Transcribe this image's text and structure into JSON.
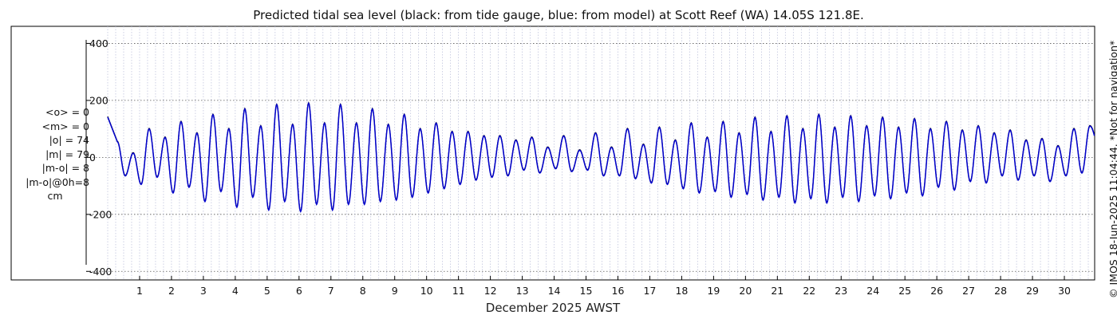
{
  "chart_data": {
    "type": "line",
    "title": "Predicted tidal sea level (black: from tide gauge, blue: from model) at Scott Reef (WA) 14.05S 121.8E.",
    "xlabel": "December 2025 AWST",
    "ylabel": "",
    "x_day_range": [
      0.0,
      30.95
    ],
    "ylim": [
      -430,
      460
    ],
    "yticks": [
      -400,
      -200,
      0,
      200,
      400
    ],
    "ytick_labels": [
      "-400",
      "-200",
      "0",
      "200",
      "400"
    ],
    "xticks": [
      1,
      2,
      3,
      4,
      5,
      6,
      7,
      8,
      9,
      10,
      11,
      12,
      13,
      14,
      15,
      16,
      17,
      18,
      19,
      20,
      21,
      22,
      23,
      24,
      25,
      26,
      27,
      28,
      29,
      30
    ],
    "xtick_labels": [
      "1",
      "2",
      "3",
      "4",
      "5",
      "6",
      "7",
      "8",
      "9",
      "10",
      "11",
      "12",
      "13",
      "14",
      "15",
      "16",
      "17",
      "18",
      "19",
      "20",
      "21",
      "22",
      "23",
      "24",
      "25",
      "26",
      "27",
      "28",
      "29",
      "30"
    ],
    "grid": true,
    "series_meta": [
      {
        "name": "tide gauge",
        "color": "#000000"
      },
      {
        "name": "model",
        "color": "#0000cc"
      }
    ],
    "high_tide_peaks_cm": {
      "day": [
        0.3,
        0.8,
        1.3,
        1.8,
        2.3,
        2.8,
        3.3,
        3.8,
        4.3,
        4.8,
        5.3,
        5.8,
        6.3,
        6.8,
        7.3,
        7.8,
        8.3,
        8.8,
        9.3,
        9.8,
        10.3,
        10.8,
        11.3,
        11.8,
        12.3,
        12.8,
        13.3,
        13.8,
        14.3,
        14.8,
        15.3,
        15.8,
        16.3,
        16.8,
        17.3,
        17.8,
        18.3,
        18.8,
        19.3,
        19.8,
        20.3,
        20.8,
        21.3,
        21.8,
        22.3,
        22.8,
        23.3,
        23.8,
        24.3,
        24.8,
        25.3,
        25.8,
        26.3,
        26.8,
        27.3,
        27.8,
        28.3,
        28.8,
        29.3,
        29.8,
        30.3,
        30.8
      ],
      "level": [
        55,
        15,
        100,
        70,
        125,
        85,
        150,
        100,
        170,
        110,
        185,
        115,
        190,
        120,
        185,
        120,
        170,
        115,
        150,
        100,
        120,
        90,
        90,
        75,
        75,
        60,
        70,
        35,
        75,
        25,
        85,
        35,
        100,
        45,
        105,
        60,
        120,
        70,
        125,
        85,
        140,
        90,
        145,
        100,
        150,
        105,
        145,
        110,
        140,
        105,
        135,
        100,
        125,
        95,
        110,
        85,
        95,
        60,
        65,
        40,
        100,
        110
      ]
    },
    "low_tide_troughs_cm": {
      "day": [
        0.55,
        1.05,
        1.55,
        2.05,
        2.55,
        3.05,
        3.55,
        4.05,
        4.55,
        5.05,
        5.55,
        6.05,
        6.55,
        7.05,
        7.55,
        8.05,
        8.55,
        9.05,
        9.55,
        10.05,
        10.55,
        11.05,
        11.55,
        12.05,
        12.55,
        13.05,
        13.55,
        14.05,
        14.55,
        15.05,
        15.55,
        16.05,
        16.55,
        17.05,
        17.55,
        18.05,
        18.55,
        19.05,
        19.55,
        20.05,
        20.55,
        21.05,
        21.55,
        22.05,
        22.55,
        23.05,
        23.55,
        24.05,
        24.55,
        25.05,
        25.55,
        26.05,
        26.55,
        27.05,
        27.55,
        28.05,
        28.55,
        29.05,
        29.55,
        30.05,
        30.55
      ],
      "level": [
        -65,
        -95,
        -70,
        -125,
        -105,
        -155,
        -120,
        -175,
        -140,
        -185,
        -155,
        -190,
        -165,
        -185,
        -165,
        -165,
        -155,
        -150,
        -140,
        -125,
        -110,
        -95,
        -80,
        -70,
        -65,
        -45,
        -55,
        -40,
        -50,
        -45,
        -65,
        -65,
        -75,
        -90,
        -95,
        -110,
        -125,
        -120,
        -140,
        -130,
        -150,
        -140,
        -160,
        -145,
        -160,
        -140,
        -155,
        -135,
        -145,
        -125,
        -135,
        -105,
        -115,
        -85,
        -90,
        -65,
        -80,
        -65,
        -85,
        -65,
        -55
      ]
    },
    "stats": {
      "o_mean": "<o> = 0",
      "m_mean": "<m> = 0",
      "o_abs": "|o| = 74",
      "m_abs": "|m| = 79",
      "diff": "|m-o| = 8",
      "diff0": "|m-o|@0h=8",
      "unit": "cm"
    },
    "credit": "© IMOS 18-Jun-2025 11:04:44. *Not for navigation*"
  }
}
